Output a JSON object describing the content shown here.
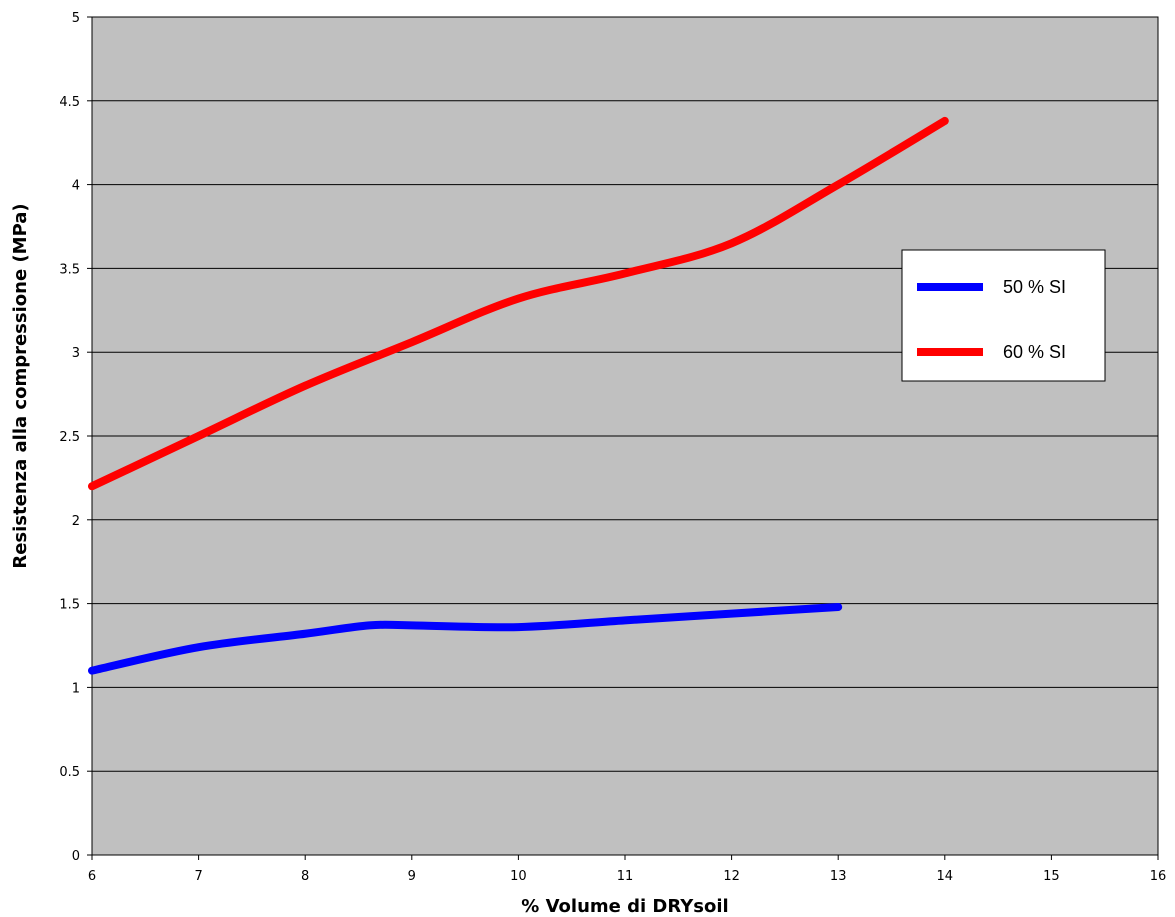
{
  "chart_data": {
    "type": "line",
    "title": "",
    "xlabel": "% Volume di DRYsoil",
    "ylabel": "Resistenza alla compressione (MPa)",
    "xlim": [
      6,
      16
    ],
    "ylim": [
      0,
      5
    ],
    "x_ticks": [
      "6",
      "7",
      "8",
      "9",
      "10",
      "11",
      "12",
      "13",
      "14",
      "15",
      "16"
    ],
    "y_ticks": [
      "0",
      "0.5",
      "1",
      "1.5",
      "2",
      "2.5",
      "3",
      "3.5",
      "4",
      "4.5",
      "5"
    ],
    "grid": "horizontal",
    "plot_background": "#c0c0c0",
    "legend_position": "right",
    "series": [
      {
        "name": "50 % SI",
        "color": "#0000ff",
        "points": [
          [
            6,
            1.1
          ],
          [
            7,
            1.24
          ],
          [
            8,
            1.32
          ],
          [
            8.6,
            1.37
          ],
          [
            9,
            1.37
          ],
          [
            10,
            1.36
          ],
          [
            11,
            1.4
          ],
          [
            12,
            1.44
          ],
          [
            13,
            1.48
          ]
        ]
      },
      {
        "name": "60 % SI",
        "color": "#ff0000",
        "points": [
          [
            6,
            2.2
          ],
          [
            7,
            2.5
          ],
          [
            8,
            2.8
          ],
          [
            9,
            3.06
          ],
          [
            10,
            3.32
          ],
          [
            11,
            3.47
          ],
          [
            12,
            3.65
          ],
          [
            13,
            4.0
          ],
          [
            14,
            4.38
          ]
        ]
      }
    ]
  }
}
